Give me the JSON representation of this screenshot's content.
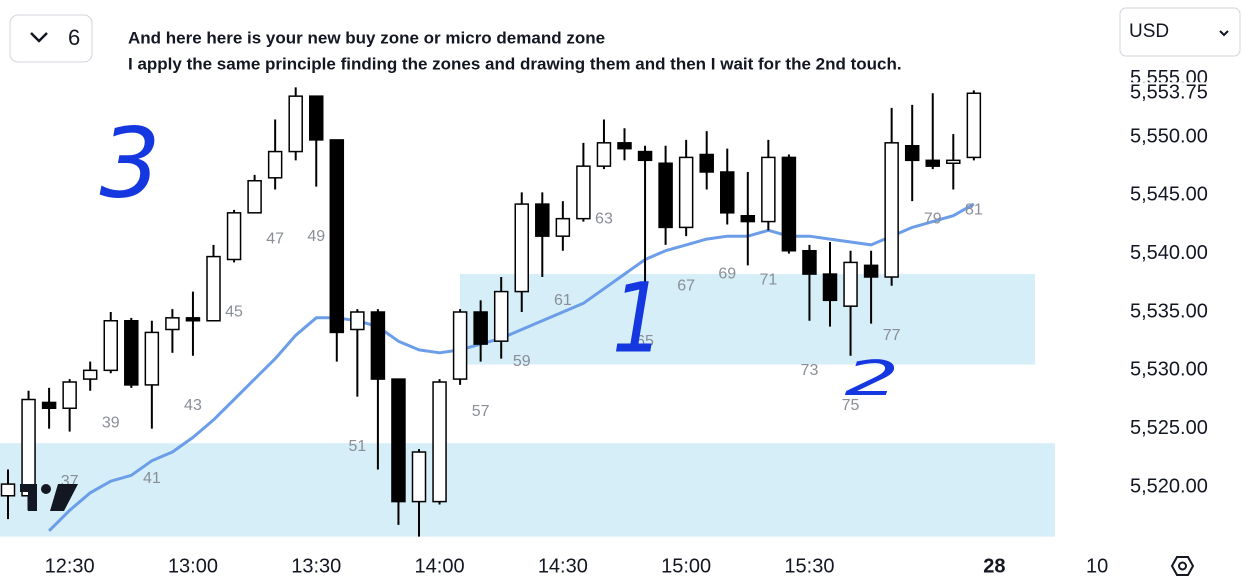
{
  "toolbar": {
    "count": 6,
    "currency": "USD"
  },
  "chart_data": {
    "type": "candlestick",
    "title": "And here here is your new buy zone or micro demand zone",
    "subtitle": "I apply the same principle finding the zones and drawing them and then I wait for the 2nd touch.",
    "categories": [
      null,
      null,
      null,
      "12:30",
      null,
      null,
      null,
      null,
      null,
      "13:00",
      null,
      null,
      null,
      null,
      null,
      "13:30",
      null,
      null,
      null,
      null,
      null,
      "14:00",
      null,
      null,
      null,
      null,
      null,
      "14:30",
      null,
      null,
      null,
      null,
      null,
      "15:00",
      null,
      null,
      null,
      null,
      null,
      "15:30",
      null,
      null,
      null,
      null,
      null,
      null,
      null,
      null,
      "28",
      null,
      null,
      null,
      null,
      "10"
    ],
    "open": [
      5519.25,
      5519.25,
      5527.25,
      5526.75,
      5529.25,
      5530.0,
      5534.25,
      5528.75,
      5533.5,
      5534.5,
      5534.25,
      5539.5,
      5543.5,
      5546.5,
      5548.75,
      5553.5,
      5549.75,
      5533.5,
      5535.0,
      5529.25,
      5518.75,
      5518.75,
      5529.25,
      5535.0,
      5532.5,
      5536.75,
      5544.25,
      5541.5,
      5543.0,
      5547.5,
      5549.5,
      5548.75,
      5547.75,
      5542.25,
      5548.5,
      5547.0,
      5543.25,
      5542.75,
      5548.25,
      5540.25,
      5538.25,
      5535.5,
      5539.0,
      5538.0,
      5549.25,
      5548.0,
      5547.75,
      5548.25,
      null,
      null,
      null,
      null,
      null,
      null
    ],
    "high": [
      5521.5,
      5528.25,
      5528.5,
      5529.25,
      5530.75,
      5535.0,
      5534.5,
      5534.25,
      5535.25,
      5536.75,
      5540.75,
      5543.75,
      5546.75,
      5551.5,
      5554.25,
      5553.5,
      5549.75,
      5535.25,
      5535.25,
      5529.25,
      5523.25,
      5529.25,
      5535.25,
      5536.0,
      5538.0,
      5545.25,
      5545.25,
      5544.5,
      5549.5,
      5551.5,
      5550.75,
      5549.25,
      5549.25,
      5549.75,
      5550.5,
      5549.0,
      5547.0,
      5549.75,
      5548.5,
      5540.75,
      5541.0,
      5540.25,
      5540.25,
      5552.5,
      5552.75,
      5553.75,
      5550.25,
      5554.0,
      null,
      null,
      null,
      null,
      null,
      null
    ],
    "low": [
      5517.25,
      5518.0,
      5525.0,
      5524.75,
      5528.25,
      5529.75,
      5528.5,
      5525.0,
      5531.5,
      5531.25,
      5534.25,
      5539.25,
      5543.5,
      5545.5,
      5548.0,
      5545.75,
      5530.75,
      5527.75,
      5521.5,
      5516.75,
      5515.75,
      5518.5,
      5528.75,
      5530.75,
      5531.0,
      5535.0,
      5538.0,
      5540.25,
      5542.75,
      5547.25,
      5548.0,
      5536.75,
      5540.75,
      5541.5,
      5545.5,
      5542.5,
      5539.0,
      5542.0,
      5540.0,
      5534.25,
      5533.75,
      5531.25,
      5534.0,
      5537.25,
      5544.5,
      5547.25,
      5545.5,
      5548.0,
      null,
      null,
      null,
      null,
      null,
      null
    ],
    "close": [
      5520.25,
      5527.5,
      5526.75,
      5529.0,
      5530.0,
      5534.25,
      5528.75,
      5533.25,
      5534.5,
      5534.25,
      5539.75,
      5543.5,
      5546.25,
      5548.75,
      5553.5,
      5549.75,
      5533.25,
      5535.0,
      5529.25,
      5518.75,
      5523.0,
      5529.0,
      5535.0,
      5532.25,
      5536.75,
      5544.25,
      5541.5,
      5543.0,
      5547.5,
      5549.5,
      5549.0,
      5548.0,
      5542.25,
      5548.25,
      5547.0,
      5543.5,
      5542.75,
      5548.25,
      5540.25,
      5538.25,
      5536.0,
      5539.25,
      5538.0,
      5549.5,
      5548.0,
      5547.5,
      5548.0,
      5553.75,
      null,
      null,
      null,
      null,
      null,
      null
    ],
    "ma": {
      "color": "#6b9de8",
      "values": [
        null,
        null,
        5516.25,
        5518.0,
        5519.5,
        5520.5,
        5521.0,
        5522.25,
        5523.0,
        5524.25,
        5525.75,
        5527.5,
        5529.25,
        5531.0,
        5533.0,
        5534.5,
        5534.5,
        5534.25,
        5533.75,
        5532.5,
        5531.75,
        5531.5,
        5531.75,
        5532.25,
        5532.75,
        5533.5,
        5534.25,
        5535.0,
        5535.75,
        5537.0,
        5538.25,
        5539.5,
        5540.25,
        5540.75,
        5541.25,
        5541.5,
        5541.5,
        5542.0,
        5541.5,
        5541.5,
        5541.25,
        5541.0,
        5540.75,
        5541.5,
        5542.25,
        5542.75,
        5543.25,
        5544.25,
        null,
        null,
        null,
        null,
        null,
        null
      ]
    },
    "bar_numbers": [
      null,
      null,
      null,
      37,
      null,
      39,
      null,
      41,
      null,
      43,
      null,
      45,
      null,
      47,
      null,
      49,
      null,
      51,
      null,
      null,
      null,
      null,
      null,
      57,
      null,
      59,
      null,
      61,
      null,
      63,
      null,
      65,
      null,
      67,
      null,
      69,
      null,
      71,
      null,
      73,
      null,
      75,
      null,
      77,
      null,
      79,
      null,
      81,
      null,
      null,
      null,
      null,
      null,
      null
    ],
    "up_color": "#ffffff",
    "down_color": "#000000",
    "zones": [
      {
        "low": 5530.5,
        "high": 5538.25,
        "color": "#d5eef7"
      },
      {
        "low": 5515.75,
        "high": 5523.75,
        "color": "#d5eef7"
      }
    ],
    "annotations": [
      "3",
      "1",
      "2"
    ],
    "ylim": [
      5515.75,
      5555.75
    ],
    "yticks": [
      {
        "value": 5520,
        "label": "5,520.00"
      },
      {
        "value": 5525,
        "label": "5,525.00"
      },
      {
        "value": 5530,
        "label": "5,530.00"
      },
      {
        "value": 5535,
        "label": "5,535.00"
      },
      {
        "value": 5540,
        "label": "5,540.00"
      },
      {
        "value": 5545,
        "label": "5,545.00"
      },
      {
        "value": 5550,
        "label": "5,550.00"
      },
      {
        "value": 5555,
        "label": "5,555.00"
      }
    ],
    "last_price": {
      "value": 5553.75,
      "label": "5,553.75"
    },
    "grid": false
  }
}
